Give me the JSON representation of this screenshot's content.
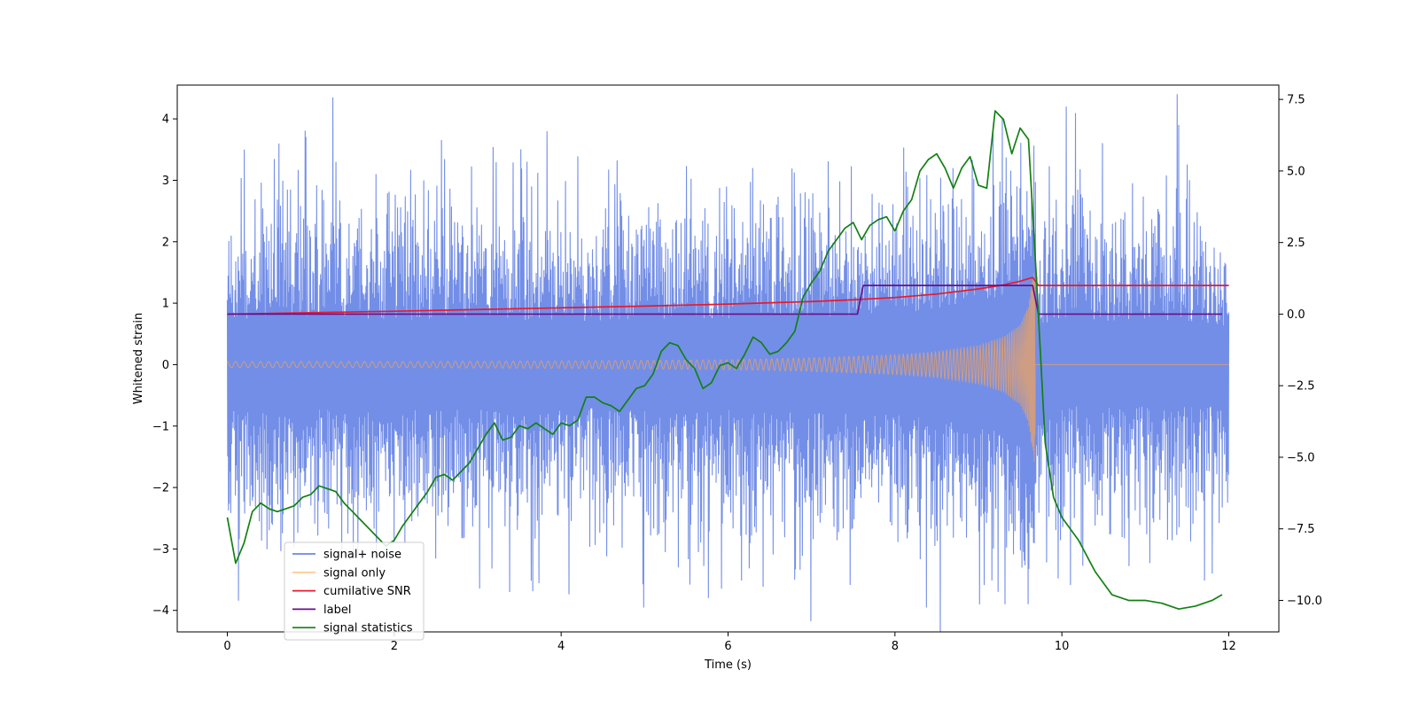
{
  "chart_data": {
    "type": "line",
    "title": "",
    "xlabel": "Time (s)",
    "ylabel_left": "Whitened strain",
    "ylabel_right": "",
    "xlim": [
      -0.6,
      12.6
    ],
    "ylim_left": [
      -4.35,
      4.55
    ],
    "ylim_right": [
      -11.1,
      8.0
    ],
    "x_ticks": [
      0,
      2,
      4,
      6,
      8,
      10,
      12
    ],
    "y_left_ticks": [
      -4,
      -3,
      -2,
      -1,
      0,
      1,
      2,
      3,
      4
    ],
    "y_right_ticks": [
      -10.0,
      -7.5,
      -5.0,
      -2.5,
      0.0,
      2.5,
      5.0,
      7.5
    ],
    "grid": false,
    "legend": {
      "position": "lower-left",
      "entries": [
        "signal+ noise",
        "signal only",
        "cumilative SNR",
        "label",
        "signal statistics"
      ]
    },
    "colors": {
      "noise": "#6b88e6",
      "signal": "#ffa64d",
      "snr": "#e8192c",
      "label": "#6a0f87",
      "stats": "#138013"
    },
    "series": [
      {
        "name": "signal+ noise",
        "axis": "left",
        "description_type": "noise envelope",
        "x": [
          0,
          0.5,
          1,
          1.5,
          2,
          2.5,
          3,
          3.5,
          4,
          4.5,
          5,
          5.5,
          6,
          6.5,
          7,
          7.5,
          8,
          8.5,
          9,
          9.5,
          9.7,
          10,
          10.5,
          11,
          11.5,
          12
        ],
        "upper": [
          2.6,
          2.8,
          2.9,
          2.7,
          2.6,
          2.7,
          2.8,
          2.6,
          2.7,
          2.5,
          2.6,
          2.7,
          2.6,
          2.9,
          2.7,
          2.6,
          2.7,
          2.6,
          2.8,
          2.7,
          2.5,
          2.9,
          2.7,
          2.8,
          2.6,
          2.4
        ],
        "lower": [
          -2.6,
          -2.8,
          -2.6,
          -2.9,
          -2.9,
          -2.6,
          -2.7,
          -2.9,
          -2.6,
          -2.5,
          -2.7,
          -2.8,
          -2.6,
          -2.8,
          -2.6,
          -2.7,
          -2.6,
          -2.8,
          -2.7,
          -3.0,
          -3.2,
          -2.6,
          -2.8,
          -2.6,
          -2.7,
          -2.4
        ],
        "peaks": [
          [
            0.05,
            2.1
          ],
          [
            0.2,
            3.5
          ],
          [
            0.62,
            3.6
          ],
          [
            1.3,
            3.3
          ],
          [
            1.78,
            3.1
          ],
          [
            2.35,
            3.0
          ],
          [
            3.38,
            -3.7
          ],
          [
            3.65,
            2.9
          ],
          [
            5.4,
            -3.3
          ],
          [
            6.3,
            3.2
          ],
          [
            6.8,
            -3.5
          ],
          [
            8.7,
            3.2
          ],
          [
            9.32,
            -3.9
          ],
          [
            9.6,
            -3.9
          ],
          [
            10.05,
            4.2
          ],
          [
            11.4,
            3.9
          ],
          [
            11.8,
            -3.4
          ]
        ]
      },
      {
        "name": "signal only",
        "axis": "left",
        "description_type": "chirp envelope",
        "x": [
          0,
          2,
          4,
          6,
          7,
          8,
          8.5,
          9,
          9.3,
          9.5,
          9.6,
          9.67,
          9.7,
          12
        ],
        "amplitude": [
          0.05,
          0.05,
          0.06,
          0.08,
          0.11,
          0.16,
          0.21,
          0.31,
          0.45,
          0.65,
          0.95,
          1.6,
          0.0,
          0.0
        ]
      },
      {
        "name": "cumilative SNR",
        "axis": "right",
        "x": [
          0,
          1,
          2,
          3,
          4,
          5,
          6,
          7,
          7.5,
          8,
          8.5,
          9,
          9.3,
          9.5,
          9.65,
          9.72,
          12
        ],
        "y": [
          0.0,
          0.05,
          0.1,
          0.16,
          0.22,
          0.28,
          0.35,
          0.44,
          0.5,
          0.58,
          0.7,
          0.88,
          1.02,
          1.15,
          1.28,
          1.0,
          1.0
        ]
      },
      {
        "name": "label",
        "axis": "right",
        "x": [
          0,
          7.55,
          7.62,
          9.65,
          9.72,
          11.92
        ],
        "y": [
          0.0,
          0.0,
          1.0,
          1.0,
          0.0,
          0.0
        ]
      },
      {
        "name": "signal statistics",
        "axis": "right",
        "x": [
          0,
          0.1,
          0.2,
          0.3,
          0.4,
          0.5,
          0.6,
          0.7,
          0.8,
          0.9,
          1.0,
          1.1,
          1.2,
          1.3,
          1.4,
          1.5,
          1.6,
          1.7,
          1.8,
          1.9,
          2.0,
          2.1,
          2.2,
          2.3,
          2.4,
          2.5,
          2.6,
          2.7,
          2.8,
          2.9,
          3.0,
          3.1,
          3.2,
          3.3,
          3.4,
          3.5,
          3.6,
          3.7,
          3.8,
          3.9,
          4.0,
          4.1,
          4.2,
          4.3,
          4.4,
          4.5,
          4.6,
          4.7,
          4.8,
          4.9,
          5.0,
          5.1,
          5.2,
          5.3,
          5.4,
          5.5,
          5.6,
          5.7,
          5.8,
          5.9,
          6.0,
          6.1,
          6.2,
          6.3,
          6.4,
          6.5,
          6.6,
          6.7,
          6.8,
          6.9,
          7.0,
          7.1,
          7.2,
          7.3,
          7.4,
          7.5,
          7.6,
          7.7,
          7.8,
          7.9,
          8.0,
          8.1,
          8.2,
          8.3,
          8.4,
          8.5,
          8.6,
          8.7,
          8.8,
          8.9,
          9.0,
          9.1,
          9.2,
          9.3,
          9.4,
          9.5,
          9.6,
          9.7,
          9.8,
          9.9,
          10.0,
          10.2,
          10.4,
          10.6,
          10.8,
          11.0,
          11.2,
          11.4,
          11.6,
          11.8,
          11.92
        ],
        "y": [
          -7.1,
          -8.7,
          -8.0,
          -6.9,
          -6.6,
          -6.8,
          -6.9,
          -6.8,
          -6.7,
          -6.4,
          -6.3,
          -6.0,
          -6.1,
          -6.2,
          -6.6,
          -6.9,
          -7.2,
          -7.5,
          -7.8,
          -8.1,
          -7.9,
          -7.4,
          -7.0,
          -6.6,
          -6.2,
          -5.7,
          -5.6,
          -5.8,
          -5.5,
          -5.2,
          -4.7,
          -4.2,
          -3.8,
          -4.4,
          -4.3,
          -3.9,
          -4.0,
          -3.8,
          -4.0,
          -4.2,
          -3.8,
          -3.9,
          -3.7,
          -2.9,
          -2.9,
          -3.1,
          -3.2,
          -3.4,
          -3.0,
          -2.6,
          -2.5,
          -2.1,
          -1.3,
          -1.0,
          -1.1,
          -1.6,
          -1.9,
          -2.6,
          -2.4,
          -1.8,
          -1.7,
          -1.9,
          -1.4,
          -0.8,
          -1.0,
          -1.4,
          -1.3,
          -1.0,
          -0.6,
          0.6,
          1.1,
          1.5,
          2.2,
          2.6,
          3.0,
          3.2,
          2.6,
          3.1,
          3.3,
          3.4,
          2.9,
          3.6,
          4.0,
          5.0,
          5.4,
          5.6,
          5.1,
          4.4,
          5.1,
          5.5,
          4.5,
          4.4,
          7.1,
          6.8,
          5.6,
          6.5,
          6.1,
          1.0,
          -4.5,
          -6.4,
          -7.1,
          -7.9,
          -9.0,
          -9.8,
          -10.0,
          -10.0,
          -10.1,
          -10.3,
          -10.2,
          -10.0,
          -9.8
        ]
      }
    ]
  }
}
